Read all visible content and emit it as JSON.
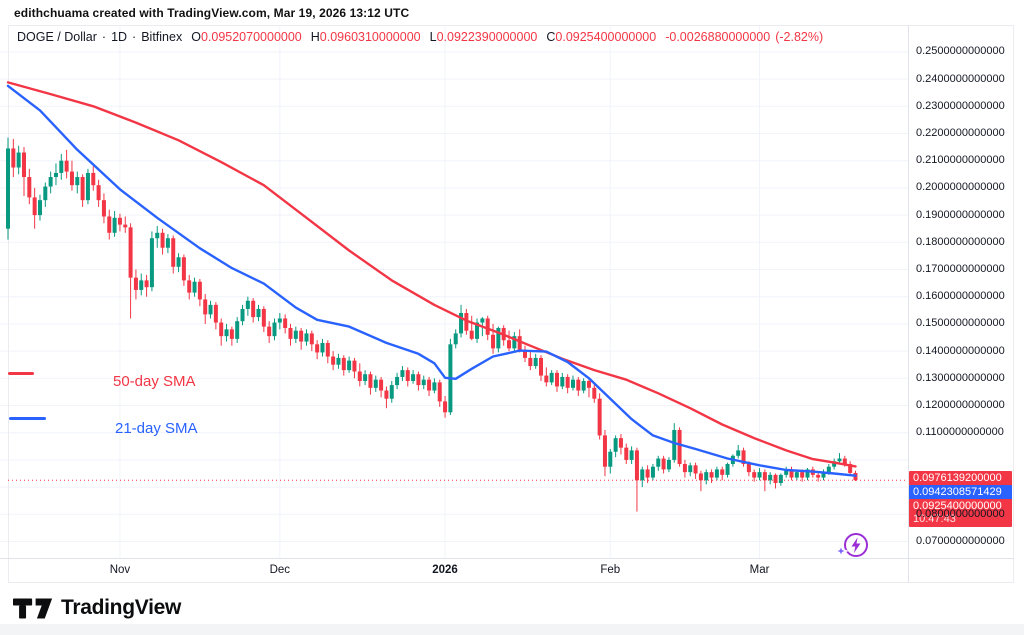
{
  "credit": "edithchuama created with TradingView.com, Mar 19, 2026 13:12 UTC",
  "header": {
    "symbol": "DOGE / Dollar",
    "separator": "·",
    "interval": "1D",
    "exchange": "Bitfinex",
    "o_label": "O",
    "o": "0.0952070000000",
    "h_label": "H",
    "h": "0.0960310000000",
    "l_label": "L",
    "l": "0.0922390000000",
    "c_label": "C",
    "c": "0.0925400000000",
    "change": "-0.0026880000000",
    "change_pct": "(-2.82%)"
  },
  "legend": {
    "sma50_label": "50-day SMA",
    "sma21_label": "21-day SMA"
  },
  "axis_right": {
    "price_labels": [
      "0.2500000000000",
      "0.2400000000000",
      "0.2300000000000",
      "0.2200000000000",
      "0.2100000000000",
      "0.2000000000000",
      "0.1900000000000",
      "0.1800000000000",
      "0.1700000000000",
      "0.1600000000000",
      "0.1500000000000",
      "0.1400000000000",
      "0.1300000000000",
      "0.1200000000000",
      "0.1100000000000",
      "0.0800000000000",
      "0.0700000000000"
    ]
  },
  "badges": {
    "sma50": "0.0976139200000",
    "sma21": "0.0942308571429",
    "last": "0.0925400000000",
    "countdown": "10:47:43"
  },
  "time_axis": {
    "ticks": [
      {
        "label": "Nov",
        "index": 21,
        "bold": false
      },
      {
        "label": "Dec",
        "index": 51,
        "bold": false
      },
      {
        "label": "2026",
        "index": 82,
        "bold": true
      },
      {
        "label": "Feb",
        "index": 113,
        "bold": false
      },
      {
        "label": "Mar",
        "index": 141,
        "bold": false
      }
    ]
  },
  "logo": {
    "text": "TradingView"
  },
  "icons": {
    "ai_boost": "lightning-circle-sparkle-icon",
    "logo_mark": "tradingview-logo-icon"
  },
  "colors": {
    "up": "#089981",
    "down": "#f23645",
    "sma50": "#f23645",
    "sma21": "#2962ff",
    "badge_red": "#f23645",
    "badge_blue": "#2962ff",
    "grid": "#f0f3fa",
    "axis_line": "#e0e3eb",
    "frame": "#ececf0",
    "ai_purple": "#9a2fd6",
    "ai_sparkle": "#7b61ff"
  },
  "chart_data": {
    "type": "candlestick",
    "title": "DOGE / Dollar · 1D · Bitfinex",
    "ylim": [
      0.064,
      0.26
    ],
    "grid": true,
    "last_price": 0.09254,
    "sma50_last": 0.09761392,
    "sma21_last": 0.0942308571429,
    "ohlc_last": {
      "o": 0.095207,
      "h": 0.096031,
      "l": 0.092239,
      "c": 0.09254
    },
    "change": -0.002688,
    "change_pct": -2.82,
    "candles": [
      [
        0.185,
        0.2185,
        0.181,
        0.2145
      ],
      [
        0.2145,
        0.218,
        0.204,
        0.2075
      ],
      [
        0.2075,
        0.2155,
        0.205,
        0.213
      ],
      [
        0.213,
        0.215,
        0.197,
        0.204
      ],
      [
        0.204,
        0.207,
        0.194,
        0.1965
      ],
      [
        0.1965,
        0.2,
        0.185,
        0.19
      ],
      [
        0.19,
        0.1975,
        0.188,
        0.1955
      ],
      [
        0.1955,
        0.202,
        0.193,
        0.2005
      ],
      [
        0.2005,
        0.206,
        0.198,
        0.204
      ],
      [
        0.204,
        0.209,
        0.201,
        0.2055
      ],
      [
        0.2055,
        0.2125,
        0.203,
        0.21
      ],
      [
        0.21,
        0.214,
        0.2035,
        0.206
      ],
      [
        0.206,
        0.21,
        0.199,
        0.201
      ],
      [
        0.201,
        0.206,
        0.198,
        0.204
      ],
      [
        0.204,
        0.205,
        0.193,
        0.1955
      ],
      [
        0.1955,
        0.207,
        0.194,
        0.2055
      ],
      [
        0.2055,
        0.208,
        0.199,
        0.201
      ],
      [
        0.201,
        0.203,
        0.193,
        0.1955
      ],
      [
        0.1955,
        0.198,
        0.187,
        0.1895
      ],
      [
        0.1895,
        0.192,
        0.181,
        0.1835
      ],
      [
        0.1835,
        0.1915,
        0.182,
        0.189
      ],
      [
        0.189,
        0.1905,
        0.184,
        0.1865
      ],
      [
        0.1865,
        0.1895,
        0.1835,
        0.1855
      ],
      [
        0.1855,
        0.187,
        0.152,
        0.167
      ],
      [
        0.167,
        0.17,
        0.159,
        0.1625
      ],
      [
        0.1625,
        0.1685,
        0.1605,
        0.166
      ],
      [
        0.166,
        0.168,
        0.16,
        0.1635
      ],
      [
        0.1635,
        0.184,
        0.162,
        0.1815
      ],
      [
        0.1815,
        0.186,
        0.178,
        0.1835
      ],
      [
        0.1835,
        0.185,
        0.1755,
        0.178
      ],
      [
        0.178,
        0.183,
        0.176,
        0.1815
      ],
      [
        0.1815,
        0.1825,
        0.1685,
        0.171
      ],
      [
        0.171,
        0.176,
        0.169,
        0.1745
      ],
      [
        0.1745,
        0.1755,
        0.164,
        0.166
      ],
      [
        0.166,
        0.168,
        0.159,
        0.1615
      ],
      [
        0.1615,
        0.167,
        0.16,
        0.1655
      ],
      [
        0.1655,
        0.1665,
        0.1565,
        0.159
      ],
      [
        0.159,
        0.161,
        0.15,
        0.1535
      ],
      [
        0.1535,
        0.1585,
        0.152,
        0.157
      ],
      [
        0.157,
        0.158,
        0.148,
        0.1505
      ],
      [
        0.1505,
        0.152,
        0.142,
        0.1455
      ],
      [
        0.1455,
        0.15,
        0.1435,
        0.148
      ],
      [
        0.148,
        0.149,
        0.142,
        0.1445
      ],
      [
        0.1445,
        0.1525,
        0.143,
        0.151
      ],
      [
        0.151,
        0.157,
        0.1495,
        0.1555
      ],
      [
        0.1555,
        0.16,
        0.153,
        0.1585
      ],
      [
        0.1585,
        0.1595,
        0.1505,
        0.1525
      ],
      [
        0.1525,
        0.157,
        0.151,
        0.1555
      ],
      [
        0.1555,
        0.1565,
        0.147,
        0.149
      ],
      [
        0.149,
        0.151,
        0.143,
        0.1455
      ],
      [
        0.1455,
        0.152,
        0.144,
        0.1505
      ],
      [
        0.1505,
        0.154,
        0.148,
        0.152
      ],
      [
        0.152,
        0.1535,
        0.1465,
        0.1485
      ],
      [
        0.1485,
        0.15,
        0.142,
        0.1445
      ],
      [
        0.1445,
        0.149,
        0.143,
        0.1475
      ],
      [
        0.1475,
        0.1485,
        0.1405,
        0.1435
      ],
      [
        0.1435,
        0.148,
        0.142,
        0.1465
      ],
      [
        0.1465,
        0.1475,
        0.14,
        0.1425
      ],
      [
        0.1425,
        0.144,
        0.137,
        0.1395
      ],
      [
        0.1395,
        0.1445,
        0.138,
        0.143
      ],
      [
        0.143,
        0.144,
        0.1355,
        0.138
      ],
      [
        0.138,
        0.14,
        0.133,
        0.135
      ],
      [
        0.135,
        0.139,
        0.1335,
        0.1375
      ],
      [
        0.1375,
        0.1385,
        0.131,
        0.133
      ],
      [
        0.133,
        0.138,
        0.132,
        0.1365
      ],
      [
        0.1365,
        0.1375,
        0.13,
        0.1325
      ],
      [
        0.1325,
        0.1355,
        0.127,
        0.129
      ],
      [
        0.129,
        0.133,
        0.1275,
        0.1315
      ],
      [
        0.1315,
        0.1325,
        0.124,
        0.1265
      ],
      [
        0.1265,
        0.131,
        0.125,
        0.1295
      ],
      [
        0.1295,
        0.1305,
        0.123,
        0.1255
      ],
      [
        0.1255,
        0.127,
        0.119,
        0.1225
      ],
      [
        0.1225,
        0.129,
        0.121,
        0.1275
      ],
      [
        0.1275,
        0.132,
        0.126,
        0.1305
      ],
      [
        0.1305,
        0.1345,
        0.129,
        0.133
      ],
      [
        0.133,
        0.134,
        0.127,
        0.129
      ],
      [
        0.129,
        0.133,
        0.128,
        0.1315
      ],
      [
        0.1315,
        0.1325,
        0.1255,
        0.1275
      ],
      [
        0.1275,
        0.131,
        0.126,
        0.1295
      ],
      [
        0.1295,
        0.1305,
        0.1235,
        0.1255
      ],
      [
        0.1255,
        0.13,
        0.1245,
        0.1285
      ],
      [
        0.1285,
        0.1295,
        0.1195,
        0.1215
      ],
      [
        0.1215,
        0.1235,
        0.1155,
        0.1175
      ],
      [
        0.1175,
        0.1445,
        0.1165,
        0.1425
      ],
      [
        0.1425,
        0.148,
        0.141,
        0.1465
      ],
      [
        0.1465,
        0.157,
        0.145,
        0.154
      ],
      [
        0.154,
        0.1555,
        0.146,
        0.1475
      ],
      [
        0.1475,
        0.153,
        0.144,
        0.1445
      ],
      [
        0.1445,
        0.152,
        0.143,
        0.1505
      ],
      [
        0.1505,
        0.1525,
        0.1455,
        0.152
      ],
      [
        0.152,
        0.153,
        0.144,
        0.146
      ],
      [
        0.146,
        0.15,
        0.139,
        0.141
      ],
      [
        0.141,
        0.149,
        0.1395,
        0.1485
      ],
      [
        0.1485,
        0.1495,
        0.142,
        0.144
      ],
      [
        0.144,
        0.1475,
        0.14,
        0.141
      ],
      [
        0.141,
        0.147,
        0.14,
        0.1455
      ],
      [
        0.1455,
        0.148,
        0.1395,
        0.1405
      ],
      [
        0.1405,
        0.142,
        0.136,
        0.1375
      ],
      [
        0.1375,
        0.14,
        0.133,
        0.1345
      ],
      [
        0.1345,
        0.139,
        0.1335,
        0.1375
      ],
      [
        0.1375,
        0.1385,
        0.129,
        0.131
      ],
      [
        0.131,
        0.134,
        0.127,
        0.1285
      ],
      [
        0.1285,
        0.133,
        0.1275,
        0.132
      ],
      [
        0.132,
        0.133,
        0.125,
        0.127
      ],
      [
        0.127,
        0.132,
        0.126,
        0.1305
      ],
      [
        0.1305,
        0.1315,
        0.1245,
        0.1265
      ],
      [
        0.1265,
        0.131,
        0.1255,
        0.1295
      ],
      [
        0.1295,
        0.1305,
        0.1235,
        0.1255
      ],
      [
        0.1255,
        0.13,
        0.1245,
        0.129
      ],
      [
        0.129,
        0.13,
        0.123,
        0.1265
      ],
      [
        0.1265,
        0.1285,
        0.121,
        0.1225
      ],
      [
        0.1225,
        0.1245,
        0.1075,
        0.109
      ],
      [
        0.109,
        0.111,
        0.094,
        0.0975
      ],
      [
        0.0975,
        0.104,
        0.095,
        0.103
      ],
      [
        0.103,
        0.109,
        0.101,
        0.108
      ],
      [
        0.108,
        0.1095,
        0.102,
        0.1045
      ],
      [
        0.1045,
        0.106,
        0.0985,
        0.1
      ],
      [
        0.1,
        0.105,
        0.0985,
        0.1035
      ],
      [
        0.1035,
        0.1045,
        0.081,
        0.0925
      ],
      [
        0.0925,
        0.0975,
        0.09,
        0.0965
      ],
      [
        0.0965,
        0.098,
        0.0915,
        0.0935
      ],
      [
        0.0935,
        0.0985,
        0.0925,
        0.0975
      ],
      [
        0.0975,
        0.1015,
        0.096,
        0.1005
      ],
      [
        0.1005,
        0.1015,
        0.095,
        0.0965
      ],
      [
        0.0965,
        0.101,
        0.0955,
        0.1
      ],
      [
        0.1,
        0.1135,
        0.099,
        0.111
      ],
      [
        0.111,
        0.112,
        0.0975,
        0.0985
      ],
      [
        0.0985,
        0.1,
        0.0935,
        0.0955
      ],
      [
        0.0955,
        0.099,
        0.094,
        0.098
      ],
      [
        0.098,
        0.099,
        0.093,
        0.095
      ],
      [
        0.095,
        0.096,
        0.0885,
        0.0925
      ],
      [
        0.0925,
        0.0965,
        0.091,
        0.0955
      ],
      [
        0.0955,
        0.0965,
        0.0915,
        0.0935
      ],
      [
        0.0935,
        0.0975,
        0.0925,
        0.0965
      ],
      [
        0.0965,
        0.0975,
        0.0925,
        0.0945
      ],
      [
        0.0945,
        0.099,
        0.0935,
        0.0985
      ],
      [
        0.0985,
        0.102,
        0.0975,
        0.1015
      ],
      [
        0.1015,
        0.1055,
        0.1005,
        0.1035
      ],
      [
        0.1035,
        0.1045,
        0.0975,
        0.0985
      ],
      [
        0.0985,
        0.0995,
        0.094,
        0.0955
      ],
      [
        0.0955,
        0.0965,
        0.092,
        0.0935
      ],
      [
        0.0935,
        0.097,
        0.0925,
        0.0955
      ],
      [
        0.0955,
        0.0965,
        0.0885,
        0.0925
      ],
      [
        0.0925,
        0.0955,
        0.091,
        0.0945
      ],
      [
        0.0945,
        0.095,
        0.0895,
        0.0915
      ],
      [
        0.0915,
        0.095,
        0.0905,
        0.0945
      ],
      [
        0.0945,
        0.0975,
        0.0935,
        0.0965
      ],
      [
        0.0965,
        0.0975,
        0.0925,
        0.0935
      ],
      [
        0.0935,
        0.0965,
        0.0925,
        0.0955
      ],
      [
        0.0955,
        0.0965,
        0.092,
        0.0935
      ],
      [
        0.0935,
        0.097,
        0.0925,
        0.0965
      ],
      [
        0.0965,
        0.0975,
        0.0935,
        0.0945
      ],
      [
        0.0945,
        0.0955,
        0.092,
        0.0935
      ],
      [
        0.0935,
        0.0965,
        0.0925,
        0.0955
      ],
      [
        0.0955,
        0.0985,
        0.0945,
        0.0975
      ],
      [
        0.0975,
        0.1005,
        0.0965,
        0.0995
      ],
      [
        0.0995,
        0.1025,
        0.0985,
        0.1005
      ],
      [
        0.1005,
        0.1015,
        0.0975,
        0.0985
      ],
      [
        0.0985,
        0.0995,
        0.0945,
        0.0952
      ],
      [
        0.095207,
        0.096031,
        0.092239,
        0.09254
      ]
    ],
    "sma50": [
      [
        0,
        0.2388
      ],
      [
        8,
        0.2345
      ],
      [
        16,
        0.23
      ],
      [
        24,
        0.224
      ],
      [
        32,
        0.2175
      ],
      [
        40,
        0.2095
      ],
      [
        48,
        0.201
      ],
      [
        56,
        0.189
      ],
      [
        64,
        0.177
      ],
      [
        72,
        0.166
      ],
      [
        80,
        0.157
      ],
      [
        86,
        0.1512
      ],
      [
        92,
        0.1468
      ],
      [
        98,
        0.142
      ],
      [
        104,
        0.1372
      ],
      [
        110,
        0.133
      ],
      [
        116,
        0.1295
      ],
      [
        122,
        0.1245
      ],
      [
        128,
        0.119
      ],
      [
        134,
        0.113
      ],
      [
        140,
        0.108
      ],
      [
        146,
        0.1035
      ],
      [
        151,
        0.1003
      ],
      [
        155,
        0.099
      ],
      [
        159,
        0.0976
      ]
    ],
    "sma21": [
      [
        0,
        0.2375
      ],
      [
        6,
        0.2285
      ],
      [
        13,
        0.214
      ],
      [
        21,
        0.1995
      ],
      [
        28,
        0.189
      ],
      [
        36,
        0.1778
      ],
      [
        42,
        0.1705
      ],
      [
        48,
        0.1648
      ],
      [
        54,
        0.156
      ],
      [
        58,
        0.1515
      ],
      [
        64,
        0.149
      ],
      [
        71,
        0.143
      ],
      [
        77,
        0.139
      ],
      [
        80,
        0.1355
      ],
      [
        82,
        0.1302
      ],
      [
        84,
        0.1298
      ],
      [
        87,
        0.1335
      ],
      [
        91,
        0.138
      ],
      [
        96,
        0.1402
      ],
      [
        101,
        0.1398
      ],
      [
        105,
        0.136
      ],
      [
        109,
        0.13
      ],
      [
        113,
        0.1225
      ],
      [
        117,
        0.115
      ],
      [
        121,
        0.109
      ],
      [
        125,
        0.1062
      ],
      [
        129,
        0.104
      ],
      [
        135,
        0.1005
      ],
      [
        141,
        0.098
      ],
      [
        146,
        0.0963
      ],
      [
        151,
        0.0957
      ],
      [
        155,
        0.095
      ],
      [
        159,
        0.0942
      ]
    ]
  }
}
